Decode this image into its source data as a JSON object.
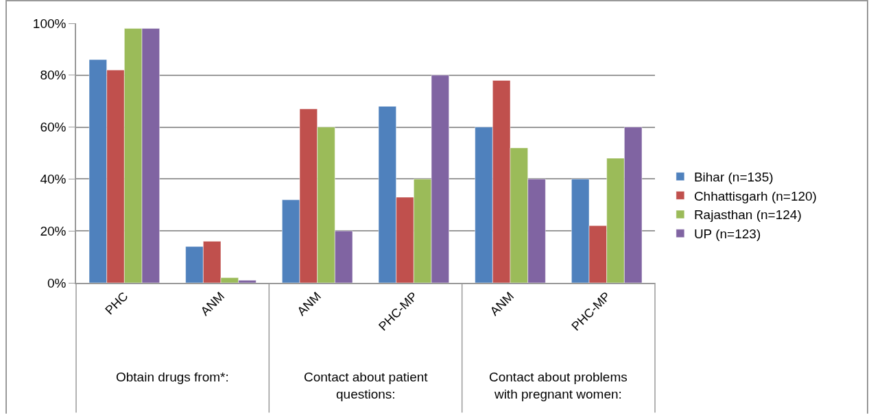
{
  "chart_data": {
    "type": "bar",
    "categories": [
      "PHC",
      "ANM",
      "ANM",
      "PHC-MP",
      "ANM",
      "PHC-MP"
    ],
    "series": [
      {
        "name": "Bihar (n=135)",
        "color": "#4f81bd",
        "values": [
          86,
          14,
          32,
          68,
          60,
          40
        ]
      },
      {
        "name": "Chhattisgarh (n=120)",
        "color": "#c0504d",
        "values": [
          82,
          16,
          67,
          33,
          78,
          22
        ]
      },
      {
        "name": "Rajasthan (n=124)",
        "color": "#9bbb59",
        "values": [
          98,
          2,
          60,
          40,
          52,
          48
        ]
      },
      {
        "name": "UP (n=123)",
        "color": "#8064a2",
        "values": [
          98,
          1,
          20,
          80,
          40,
          60
        ]
      }
    ],
    "ylim": [
      0,
      100
    ],
    "yticks": [
      {
        "value": 0,
        "label": "0%"
      },
      {
        "value": 20,
        "label": "20%"
      },
      {
        "value": 40,
        "label": "40%"
      },
      {
        "value": 60,
        "label": "60%"
      },
      {
        "value": 80,
        "label": "80%"
      },
      {
        "value": 100,
        "label": "100%"
      }
    ],
    "grid": "y",
    "legend": "right",
    "annotations": [
      "Obtain drugs from*:",
      "Contact about patient questions:",
      "Contact about problems with pregnant women:"
    ]
  }
}
